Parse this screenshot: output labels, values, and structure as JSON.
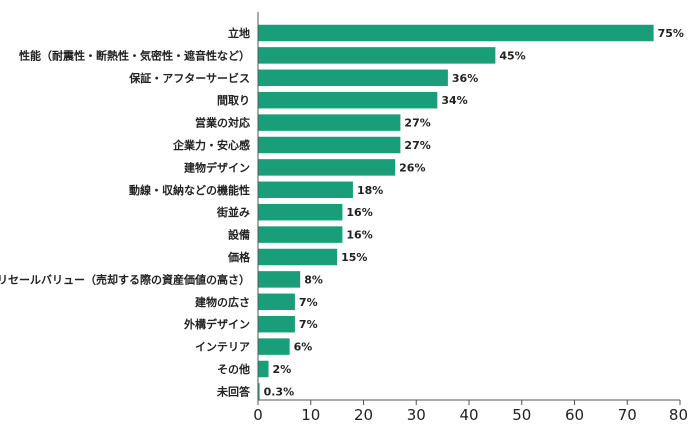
{
  "chart_data": {
    "type": "bar",
    "orientation": "horizontal",
    "categories": [
      "立地",
      "性能（耐震性・断熱性・気密性・遮音性など）",
      "保証・アフターサービス",
      "間取り",
      "営業の対応",
      "企業力・安心感",
      "建物デザイン",
      "動線・収納などの機能性",
      "街並み",
      "設備",
      "価格",
      "リセールバリュー（売却する際の資産価値の高さ）",
      "建物の広さ",
      "外構デザイン",
      "インテリア",
      "その他",
      "未回答"
    ],
    "values": [
      75,
      45,
      36,
      34,
      27,
      27,
      26,
      18,
      16,
      16,
      15,
      8,
      7,
      7,
      6,
      2,
      0.3
    ],
    "value_labels": [
      "75%",
      "45%",
      "36%",
      "34%",
      "27%",
      "27%",
      "26%",
      "18%",
      "16%",
      "16%",
      "15%",
      "8%",
      "7%",
      "7%",
      "6%",
      "2%",
      "0.3%"
    ],
    "xlim": [
      0,
      80
    ],
    "xticks": [
      0,
      10,
      20,
      30,
      40,
      50,
      60,
      70,
      80
    ],
    "xtick_labels": [
      "0",
      "10",
      "20",
      "30",
      "40",
      "50",
      "60",
      "70",
      "80"
    ],
    "title": "",
    "xlabel": "",
    "ylabel": "",
    "grid": false,
    "bar_color": "#1a9e7a",
    "axis_color": "#555555"
  }
}
